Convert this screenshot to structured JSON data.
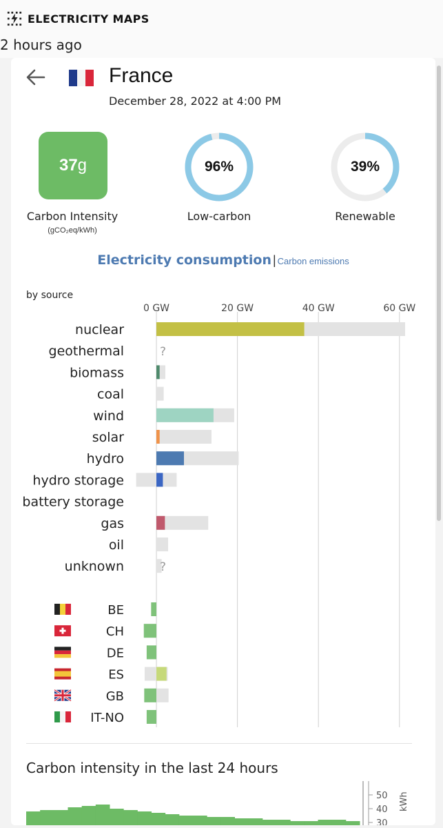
{
  "app": {
    "name": "ELECTRICITY MAPS",
    "updated": "2 hours ago",
    "brand_icon": "lightning-icon"
  },
  "zone": {
    "name": "France",
    "datetime": "December 28, 2022 at 4:00 PM"
  },
  "carbon_intensity": {
    "value": "37",
    "unit_suffix": "g",
    "label": "Carbon Intensity",
    "unit": "(gCO₂eq/kWh)",
    "color": "#6dbb65"
  },
  "low_carbon": {
    "value": "96%",
    "fraction": 0.96,
    "label": "Low-carbon",
    "color": "#8cc9e6"
  },
  "renewable": {
    "value": "39%",
    "fraction": 0.39,
    "label": "Renewable",
    "color": "#8cc9e6"
  },
  "tabs": {
    "active": "Electricity consumption",
    "separator": "|",
    "other": "Carbon emissions"
  },
  "by_source_label": "by source",
  "chart_data": {
    "type": "bar",
    "title": "",
    "xlabel": "",
    "ylabel": "",
    "unit": "GW",
    "tick_labels": [
      "0 GW",
      "20 GW",
      "40 GW",
      "60 GW"
    ],
    "ticks": [
      0,
      20,
      40,
      60
    ],
    "xlim": [
      -5,
      62
    ],
    "sources": [
      {
        "name": "nuclear",
        "value": 36.5,
        "capacity": 61.4,
        "color": "#c3c045"
      },
      {
        "name": "geothermal",
        "value": null,
        "capacity": null,
        "unknown": "?"
      },
      {
        "name": "biomass",
        "value": 0.8,
        "capacity": 2.2,
        "color": "#4f8a6c"
      },
      {
        "name": "coal",
        "value": 0,
        "capacity": 1.8,
        "color": "#555555"
      },
      {
        "name": "wind",
        "value": 14.1,
        "capacity": 19.2,
        "color": "#9ed4c2"
      },
      {
        "name": "solar",
        "value": 0.8,
        "capacity": 13.6,
        "color": "#f0934a"
      },
      {
        "name": "hydro",
        "value": 6.8,
        "capacity": 20.3,
        "color": "#4d7ab1"
      },
      {
        "name": "hydro storage",
        "value": 1.6,
        "capacity": 5.0,
        "neg_capacity": -5.0,
        "color": "#3b66c3"
      },
      {
        "name": "battery storage",
        "value": null,
        "capacity": null
      },
      {
        "name": "gas",
        "value": 2.1,
        "capacity": 12.8,
        "color": "#c0596c"
      },
      {
        "name": "oil",
        "value": 0,
        "capacity": 2.9,
        "color": "#888888"
      },
      {
        "name": "unknown",
        "value": null,
        "capacity": 1.3,
        "unknown": "?"
      }
    ],
    "exchanges": [
      {
        "code": "BE",
        "flag": "belgium-flag-icon",
        "value": -1.3,
        "capacity": -1.3
      },
      {
        "code": "CH",
        "flag": "switzerland-flag-icon",
        "value": -3.1,
        "capacity": -3.1
      },
      {
        "code": "DE",
        "flag": "germany-flag-icon",
        "value": -2.4,
        "capacity": -2.4
      },
      {
        "code": "ES",
        "flag": "spain-flag-icon",
        "value": 2.5,
        "capacity": 2.8,
        "neg_capacity": -2.9
      },
      {
        "code": "GB",
        "flag": "uk-flag-icon",
        "value": -3.0,
        "capacity": 3.0,
        "neg_capacity": -3.0
      },
      {
        "code": "IT-NO",
        "flag": "italy-flag-icon",
        "value": -2.4,
        "capacity": -2.4
      }
    ]
  },
  "ci24": {
    "title": "Carbon intensity in the last 24 hours",
    "axis_labels": [
      "50",
      "40",
      "30"
    ],
    "axis_values": [
      50,
      40,
      30
    ],
    "ylim": [
      25,
      55
    ],
    "unit": "kWh",
    "series": [
      38,
      39,
      39,
      41,
      42,
      43,
      40,
      39,
      38,
      37,
      36,
      35,
      35,
      34,
      34,
      33,
      33,
      32,
      32,
      31,
      31,
      32,
      32,
      31
    ],
    "color": "#6dbb65"
  }
}
